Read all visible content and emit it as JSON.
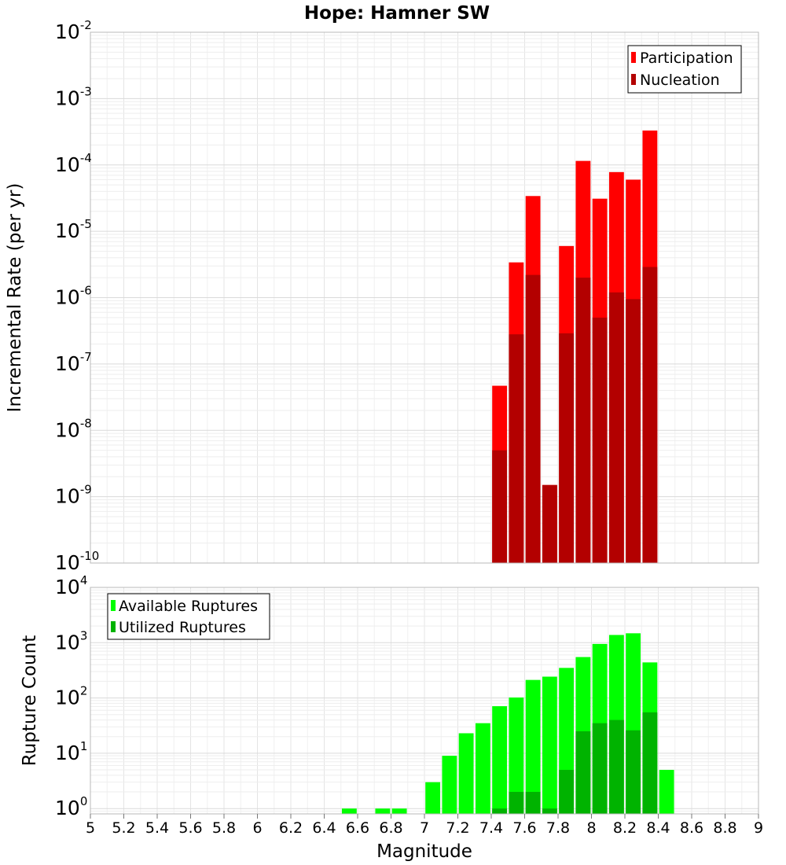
{
  "chart_data": [
    {
      "type": "bar",
      "title": "Hope: Hamner SW",
      "xlabel": "",
      "ylabel": "Incremental Rate (per yr)",
      "yscale": "log",
      "xlim": [
        5,
        9
      ],
      "ylim": [
        1e-10,
        0.01
      ],
      "ytick_base": "10",
      "ytick_exponents": [
        "-10",
        "-9",
        "-8",
        "-7",
        "-6",
        "-5",
        "-4",
        "-3",
        "-2"
      ],
      "grid": true,
      "legend_position": "top-right",
      "colors": {
        "Participation": "#ff0000",
        "Nucleation": "#b30000"
      },
      "x": [
        7.45,
        7.55,
        7.65,
        7.75,
        7.85,
        7.95,
        8.05,
        8.15,
        8.25,
        8.35
      ],
      "series": [
        {
          "name": "Participation",
          "values": [
            4.7e-08,
            3.4e-06,
            3.4e-05,
            1.5e-09,
            6e-06,
            0.000115,
            3.1e-05,
            7.8e-05,
            6e-05,
            0.00033
          ]
        },
        {
          "name": "Nucleation",
          "values": [
            5e-09,
            2.8e-07,
            2.2e-06,
            1.5e-09,
            2.9e-07,
            2e-06,
            5e-07,
            1.2e-06,
            9.5e-07,
            2.9e-06
          ]
        }
      ]
    },
    {
      "type": "bar",
      "title": "",
      "xlabel": "Magnitude",
      "ylabel": "Rupture Count",
      "yscale": "log",
      "xlim": [
        5,
        9
      ],
      "ylim": [
        0.8,
        10000
      ],
      "ytick_base": "10",
      "ytick_exponents": [
        "0",
        "1",
        "2",
        "3",
        "4"
      ],
      "xticks": [
        "5",
        "5.2",
        "5.4",
        "5.6",
        "5.8",
        "6",
        "6.2",
        "6.4",
        "6.6",
        "6.8",
        "7",
        "7.2",
        "7.4",
        "7.6",
        "7.8",
        "8",
        "8.2",
        "8.4",
        "8.6",
        "8.8",
        "9"
      ],
      "grid": true,
      "legend_position": "top-left",
      "colors": {
        "Available Ruptures": "#00ff00",
        "Utilized Ruptures": "#00b300"
      },
      "series": [
        {
          "name": "Available Ruptures",
          "x": [
            6.55,
            6.75,
            6.85,
            7.05,
            7.15,
            7.25,
            7.35,
            7.45,
            7.55,
            7.65,
            7.75,
            7.85,
            7.95,
            8.05,
            8.15,
            8.25,
            8.35,
            8.45
          ],
          "values": [
            1,
            1,
            1,
            3,
            9,
            23,
            35,
            71,
            102,
            212,
            243,
            350,
            550,
            950,
            1380,
            1480,
            440,
            5
          ]
        },
        {
          "name": "Utilized Ruptures",
          "x": [
            7.45,
            7.55,
            7.65,
            7.75,
            7.85,
            7.95,
            8.05,
            8.15,
            8.25,
            8.35
          ],
          "values": [
            1,
            2,
            2,
            1,
            5,
            25,
            35,
            40,
            26,
            55
          ]
        }
      ]
    }
  ]
}
